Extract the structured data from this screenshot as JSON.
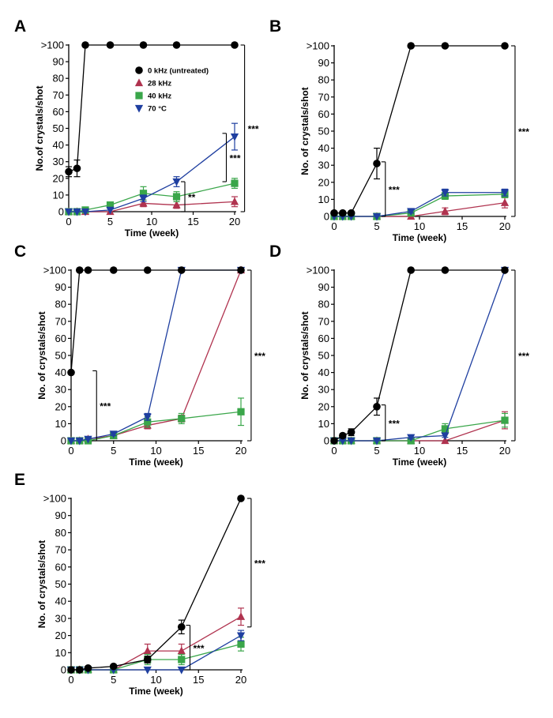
{
  "colors": {
    "untreated": "#000000",
    "k28": "#b0334f",
    "k40": "#3aa64a",
    "c70": "#1f3fa0"
  },
  "legend": [
    "0 kHz (untreated)",
    "28 kHz",
    "40 kHz",
    "70 °C"
  ],
  "chart_data": [
    {
      "panel": "A",
      "type": "line",
      "xlabel": "Time (week)",
      "ylabel": "No.of crystals/shot",
      "xlim": [
        0,
        20
      ],
      "ylim": [
        0,
        100
      ],
      "xticks": [
        0,
        5,
        10,
        15,
        20
      ],
      "yticks": [
        0,
        10,
        20,
        30,
        40,
        50,
        60,
        70,
        80,
        90,
        100
      ],
      "ytick_labels": [
        "0",
        "10",
        "20",
        "30",
        "40",
        "50",
        "60",
        "70",
        "80",
        "90",
        ">100"
      ],
      "legend_shown": true,
      "series": [
        {
          "name": "0 kHz (untreated)",
          "key": "untreated",
          "marker": "circle",
          "x": [
            0,
            1,
            2,
            5,
            9,
            13,
            20
          ],
          "y": [
            24,
            26,
            100,
            100,
            100,
            100,
            100
          ],
          "err": [
            3,
            5,
            0,
            0,
            0,
            0,
            0
          ]
        },
        {
          "name": "28 kHz",
          "key": "k28",
          "marker": "triangle-up",
          "x": [
            0,
            1,
            2,
            5,
            9,
            13,
            20
          ],
          "y": [
            0,
            0,
            0,
            0,
            5,
            4,
            6
          ],
          "err": [
            0,
            0,
            0,
            0,
            2,
            2,
            3
          ]
        },
        {
          "name": "40 kHz",
          "key": "k40",
          "marker": "square",
          "x": [
            0,
            1,
            2,
            5,
            9,
            13,
            20
          ],
          "y": [
            0,
            0,
            1,
            4,
            11,
            9,
            17
          ],
          "err": [
            0,
            0,
            0,
            1,
            4,
            3,
            3
          ]
        },
        {
          "name": "70 °C",
          "key": "c70",
          "marker": "triangle-down",
          "x": [
            0,
            1,
            2,
            5,
            9,
            13,
            20
          ],
          "y": [
            0,
            0,
            0,
            1,
            8,
            18,
            45
          ],
          "err": [
            0,
            0,
            0,
            0,
            2,
            3,
            8
          ]
        }
      ],
      "brackets": [
        {
          "x": 14,
          "y0": 0,
          "y1": 18,
          "label": "**"
        },
        {
          "x": 19,
          "y0": 18,
          "y1": 47,
          "label": "***"
        },
        {
          "x": 21.2,
          "y0": 0,
          "y1": 100,
          "label": "***"
        }
      ]
    },
    {
      "panel": "B",
      "type": "line",
      "xlabel": "Time (week)",
      "ylabel": "No. of crystals/shot",
      "xlim": [
        0,
        20
      ],
      "ylim": [
        0,
        100
      ],
      "xticks": [
        0,
        5,
        10,
        15,
        20
      ],
      "yticks": [
        0,
        10,
        20,
        30,
        40,
        50,
        60,
        70,
        80,
        90,
        100
      ],
      "ytick_labels": [
        "0",
        "10",
        "20",
        "30",
        "40",
        "50",
        "60",
        "70",
        "80",
        "90",
        ">100"
      ],
      "legend_shown": false,
      "series": [
        {
          "name": "0 kHz (untreated)",
          "key": "untreated",
          "marker": "circle",
          "x": [
            0,
            1,
            2,
            5,
            9,
            13,
            20
          ],
          "y": [
            2,
            2,
            2,
            31,
            100,
            100,
            100
          ],
          "err": [
            0,
            0,
            0,
            9,
            0,
            0,
            0
          ]
        },
        {
          "name": "28 kHz",
          "key": "k28",
          "marker": "triangle-up",
          "x": [
            0,
            1,
            2,
            5,
            9,
            13,
            20
          ],
          "y": [
            0,
            0,
            0,
            0,
            0,
            3,
            8
          ],
          "err": [
            0,
            0,
            0,
            0,
            0,
            2,
            3
          ]
        },
        {
          "name": "40 kHz",
          "key": "k40",
          "marker": "square",
          "x": [
            0,
            1,
            2,
            5,
            9,
            13,
            20
          ],
          "y": [
            0,
            0,
            0,
            0,
            2,
            12,
            13
          ],
          "err": [
            0,
            0,
            0,
            0,
            1,
            2,
            2
          ]
        },
        {
          "name": "70 °C",
          "key": "c70",
          "marker": "triangle-down",
          "x": [
            0,
            1,
            2,
            5,
            9,
            13,
            20
          ],
          "y": [
            0,
            0,
            0,
            0,
            3,
            14,
            14
          ],
          "err": [
            0,
            0,
            0,
            0,
            1,
            2,
            2
          ]
        }
      ],
      "brackets": [
        {
          "x": 6,
          "y0": 0,
          "y1": 32,
          "label": "***"
        },
        {
          "x": 21.2,
          "y0": 0,
          "y1": 100,
          "label": "***"
        }
      ]
    },
    {
      "panel": "C",
      "type": "line",
      "xlabel": "Time (week)",
      "ylabel": "No. of crystals/shot",
      "xlim": [
        0,
        20
      ],
      "ylim": [
        0,
        100
      ],
      "xticks": [
        0,
        5,
        10,
        15,
        20
      ],
      "yticks": [
        0,
        10,
        20,
        30,
        40,
        50,
        60,
        70,
        80,
        90,
        100
      ],
      "ytick_labels": [
        "0",
        "10",
        "20",
        "30",
        "40",
        "50",
        "60",
        "70",
        "80",
        "90",
        ">100"
      ],
      "legend_shown": false,
      "series": [
        {
          "name": "0 kHz (untreated)",
          "key": "untreated",
          "marker": "circle",
          "x": [
            0,
            1,
            2,
            5,
            9,
            13,
            20
          ],
          "y": [
            40,
            100,
            100,
            100,
            100,
            100,
            100
          ],
          "err": [
            0,
            0,
            0,
            0,
            0,
            0,
            0
          ]
        },
        {
          "name": "28 kHz",
          "key": "k28",
          "marker": "triangle-up",
          "x": [
            0,
            1,
            2,
            5,
            9,
            13,
            20
          ],
          "y": [
            0,
            0,
            1,
            3,
            9,
            13,
            100
          ],
          "err": [
            0,
            0,
            0,
            1,
            2,
            2,
            0
          ]
        },
        {
          "name": "40 kHz",
          "key": "k40",
          "marker": "square",
          "x": [
            0,
            1,
            2,
            5,
            9,
            13,
            20
          ],
          "y": [
            0,
            0,
            0,
            3,
            11,
            13,
            17
          ],
          "err": [
            0,
            0,
            0,
            1,
            3,
            3,
            8
          ]
        },
        {
          "name": "70 °C",
          "key": "c70",
          "marker": "triangle-down",
          "x": [
            0,
            1,
            2,
            5,
            9,
            13,
            20
          ],
          "y": [
            0,
            0,
            1,
            4,
            14,
            100,
            100
          ],
          "err": [
            0,
            0,
            0,
            1,
            2,
            0,
            0
          ]
        }
      ],
      "brackets": [
        {
          "x": 3,
          "y0": 0,
          "y1": 41,
          "label": "***"
        },
        {
          "x": 21.2,
          "y0": 0,
          "y1": 100,
          "label": "***"
        }
      ]
    },
    {
      "panel": "D",
      "type": "line",
      "xlabel": "Time (week)",
      "ylabel": "No. of crystals/shot",
      "xlim": [
        0,
        20
      ],
      "ylim": [
        0,
        100
      ],
      "xticks": [
        0,
        5,
        10,
        15,
        20
      ],
      "yticks": [
        0,
        10,
        20,
        30,
        40,
        50,
        60,
        70,
        80,
        90,
        100
      ],
      "ytick_labels": [
        "0",
        "10",
        "20",
        "30",
        "40",
        "50",
        "60",
        "70",
        "80",
        "90",
        ">100"
      ],
      "legend_shown": false,
      "series": [
        {
          "name": "0 kHz (untreated)",
          "key": "untreated",
          "marker": "circle",
          "x": [
            0,
            1,
            2,
            5,
            9,
            13,
            20
          ],
          "y": [
            0,
            3,
            5,
            20,
            100,
            100,
            100
          ],
          "err": [
            0,
            1,
            2,
            5,
            0,
            0,
            0
          ]
        },
        {
          "name": "28 kHz",
          "key": "k28",
          "marker": "triangle-up",
          "x": [
            0,
            1,
            2,
            5,
            9,
            13,
            20
          ],
          "y": [
            0,
            0,
            0,
            0,
            0,
            0,
            12
          ],
          "err": [
            0,
            0,
            0,
            0,
            0,
            0,
            5
          ]
        },
        {
          "name": "40 kHz",
          "key": "k40",
          "marker": "square",
          "x": [
            0,
            1,
            2,
            5,
            9,
            13,
            20
          ],
          "y": [
            0,
            0,
            0,
            0,
            0,
            7,
            12
          ],
          "err": [
            0,
            0,
            0,
            0,
            0,
            3,
            4
          ]
        },
        {
          "name": "70 °C",
          "key": "c70",
          "marker": "triangle-down",
          "x": [
            0,
            1,
            2,
            5,
            9,
            13,
            20
          ],
          "y": [
            0,
            0,
            0,
            0,
            2,
            3,
            100
          ],
          "err": [
            0,
            0,
            0,
            0,
            1,
            1,
            0
          ]
        }
      ],
      "brackets": [
        {
          "x": 6,
          "y0": 0,
          "y1": 21,
          "label": "***"
        },
        {
          "x": 21.2,
          "y0": 0,
          "y1": 100,
          "label": "***"
        }
      ]
    },
    {
      "panel": "E",
      "type": "line",
      "xlabel": "Time (week)",
      "ylabel": "No. of crystals/shot",
      "xlim": [
        0,
        20
      ],
      "ylim": [
        0,
        100
      ],
      "xticks": [
        0,
        5,
        10,
        15,
        20
      ],
      "yticks": [
        0,
        10,
        20,
        30,
        40,
        50,
        60,
        70,
        80,
        90,
        100
      ],
      "ytick_labels": [
        "0",
        "10",
        "20",
        "30",
        "40",
        "50",
        "60",
        "70",
        "80",
        "90",
        ">100"
      ],
      "legend_shown": false,
      "series": [
        {
          "name": "0 kHz (untreated)",
          "key": "untreated",
          "marker": "circle",
          "x": [
            0,
            1,
            2,
            5,
            9,
            13,
            20
          ],
          "y": [
            0,
            0,
            1,
            2,
            6,
            25,
            100
          ],
          "err": [
            0,
            0,
            0,
            0,
            2,
            4,
            0
          ]
        },
        {
          "name": "28 kHz",
          "key": "k28",
          "marker": "triangle-up",
          "x": [
            0,
            1,
            2,
            5,
            9,
            13,
            20
          ],
          "y": [
            0,
            0,
            0,
            0,
            11,
            11,
            31
          ],
          "err": [
            0,
            0,
            0,
            0,
            4,
            4,
            5
          ]
        },
        {
          "name": "40 kHz",
          "key": "k40",
          "marker": "square",
          "x": [
            0,
            1,
            2,
            5,
            9,
            13,
            20
          ],
          "y": [
            0,
            0,
            0,
            0,
            6,
            6,
            15
          ],
          "err": [
            0,
            0,
            0,
            0,
            3,
            3,
            4
          ]
        },
        {
          "name": "70 °C",
          "key": "c70",
          "marker": "triangle-down",
          "x": [
            0,
            1,
            2,
            5,
            9,
            13,
            20
          ],
          "y": [
            0,
            0,
            0,
            0,
            0,
            0,
            20
          ],
          "err": [
            0,
            0,
            0,
            0,
            0,
            0,
            3
          ]
        }
      ],
      "brackets": [
        {
          "x": 14,
          "y0": 0,
          "y1": 26,
          "label": "***"
        },
        {
          "x": 21.2,
          "y0": 25,
          "y1": 100,
          "label": "***"
        }
      ]
    }
  ]
}
